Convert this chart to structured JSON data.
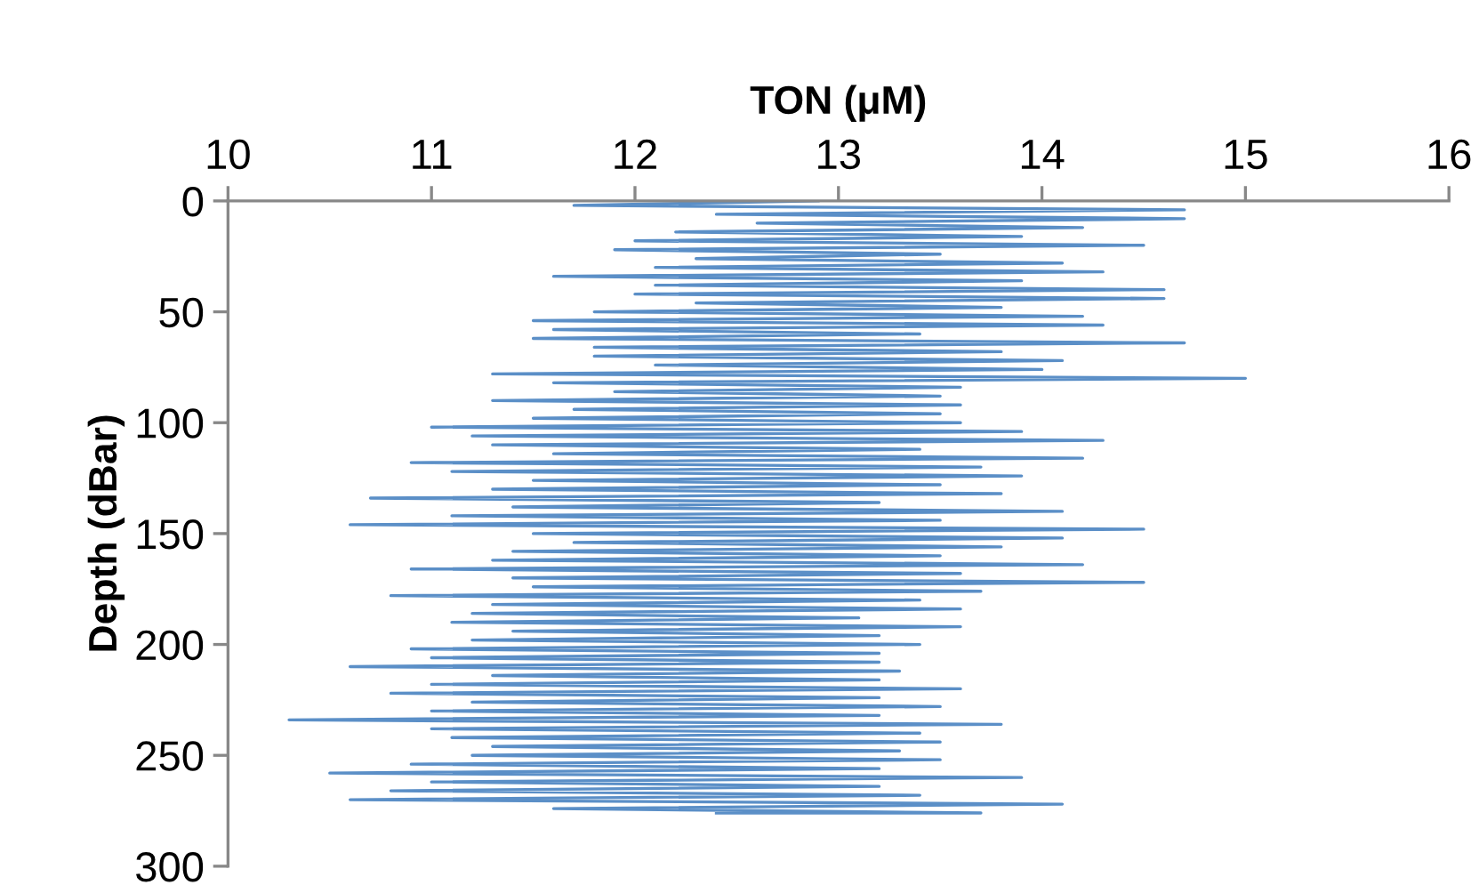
{
  "chart_data": {
    "type": "line",
    "xlabel": "TON (μM)",
    "ylabel": "Depth (dBar)",
    "xlim": [
      10,
      16
    ],
    "xticks": [
      10,
      11,
      12,
      13,
      14,
      15,
      16
    ],
    "ylim": [
      300,
      0
    ],
    "yticks": [
      0,
      50,
      100,
      150,
      200,
      250,
      300
    ],
    "grid": false,
    "legend": false,
    "marker": "none",
    "line_style": "solid",
    "color": "#5b8fc7",
    "x": [
      12.9,
      11.7,
      14.7,
      12.4,
      14.7,
      12.6,
      14.2,
      12.2,
      13.9,
      12.0,
      14.5,
      11.9,
      13.5,
      12.3,
      14.1,
      12.1,
      14.3,
      11.6,
      13.9,
      12.1,
      14.6,
      12.0,
      14.6,
      12.3,
      13.8,
      11.8,
      14.2,
      11.5,
      14.3,
      11.6,
      13.4,
      11.5,
      14.7,
      11.8,
      13.8,
      11.8,
      14.1,
      12.1,
      14.0,
      11.3,
      15.0,
      11.6,
      13.6,
      11.9,
      13.5,
      11.3,
      13.6,
      11.7,
      13.5,
      11.5,
      13.6,
      11.0,
      13.9,
      11.2,
      14.3,
      11.3,
      13.4,
      11.6,
      14.2,
      10.9,
      13.7,
      11.1,
      13.9,
      11.5,
      13.5,
      11.3,
      13.8,
      10.7,
      13.2,
      11.4,
      14.1,
      11.1,
      13.5,
      10.6,
      14.5,
      11.5,
      14.1,
      11.7,
      13.8,
      11.4,
      13.5,
      11.3,
      14.2,
      10.9,
      13.6,
      11.4,
      14.5,
      11.5,
      13.7,
      10.8,
      13.4,
      11.3,
      13.6,
      11.2,
      13.1,
      11.1,
      13.6,
      11.4,
      13.2,
      11.2,
      13.4,
      10.9,
      13.2,
      11.0,
      13.2,
      10.6,
      13.3,
      11.3,
      13.2,
      11.0,
      13.6,
      10.8,
      13.2,
      11.2,
      13.5,
      11.0,
      13.2,
      10.3,
      13.8,
      11.0,
      13.4,
      11.1,
      13.5,
      11.3,
      13.3,
      11.2,
      13.5,
      10.9,
      13.2,
      10.5,
      13.9,
      11.0,
      13.2,
      10.8,
      13.4,
      10.6,
      14.1,
      11.6,
      13.7,
      12.4
    ],
    "values": [
      0,
      2,
      4,
      6,
      8,
      10,
      12,
      14,
      16,
      18,
      20,
      22,
      24,
      26,
      28,
      30,
      32,
      34,
      36,
      38,
      40,
      42,
      44,
      46,
      48,
      50,
      52,
      54,
      56,
      58,
      60,
      62,
      64,
      66,
      68,
      70,
      72,
      74,
      76,
      78,
      80,
      82,
      84,
      86,
      88,
      90,
      92,
      94,
      96,
      98,
      100,
      102,
      104,
      106,
      108,
      110,
      112,
      114,
      116,
      118,
      120,
      122,
      124,
      126,
      128,
      130,
      132,
      134,
      136,
      138,
      140,
      142,
      144,
      146,
      148,
      150,
      152,
      154,
      156,
      158,
      160,
      162,
      164,
      166,
      168,
      170,
      172,
      174,
      176,
      178,
      180,
      182,
      184,
      186,
      188,
      190,
      192,
      194,
      196,
      198,
      200,
      202,
      204,
      206,
      208,
      210,
      212,
      214,
      216,
      218,
      220,
      222,
      224,
      226,
      228,
      230,
      232,
      234,
      236,
      238,
      240,
      242,
      244,
      246,
      248,
      250,
      252,
      254,
      256,
      258,
      260,
      262,
      264,
      266,
      268,
      270,
      272,
      274,
      276,
      276
    ]
  }
}
